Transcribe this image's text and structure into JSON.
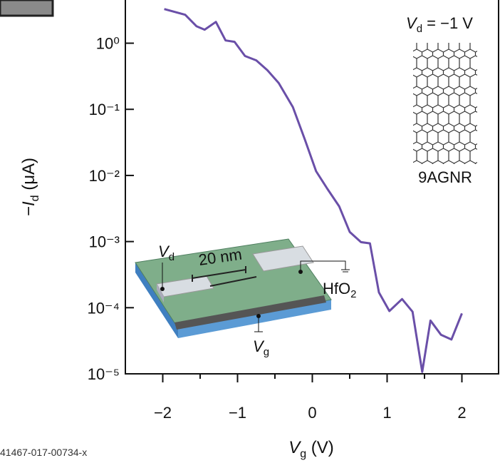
{
  "chart_data": {
    "type": "line",
    "log_scale": "y",
    "annotation": {
      "symbol": "V",
      "subscript": "d",
      "text": " = −1 V"
    },
    "molecule_label": "9AGNR",
    "inset": {
      "drain": {
        "symbol": "V",
        "subscript": "d"
      },
      "length": "20 nm",
      "dielectric": {
        "formula": "HfO",
        "subscript": "2"
      },
      "gate": {
        "symbol": "V",
        "subscript": "g"
      }
    },
    "x_label": {
      "prefix": "",
      "symbol": "V",
      "subscript": "g",
      "unit": " (V)"
    },
    "y_label": {
      "prefix": "−",
      "symbol": "I",
      "subscript": "d",
      "unit": " (μA)"
    },
    "footer": "41467-017-00734-x",
    "xlim": [
      -2.5,
      2.5
    ],
    "xticks": [
      {
        "value": -2,
        "label": "−2"
      },
      {
        "value": -1,
        "label": "−1"
      },
      0,
      1,
      2
    ],
    "xminorticks": [
      -1.5,
      -0.5,
      0.5,
      1.5
    ],
    "ylim": [
      1e-05,
      4.5
    ],
    "yticks": [
      {
        "value": 1,
        "label": "10⁰"
      },
      {
        "value": 0.1,
        "label": "10⁻¹"
      },
      {
        "value": 0.01,
        "label": "10⁻²"
      },
      {
        "value": 0.001,
        "label": "10⁻³"
      },
      {
        "value": 0.0001,
        "label": "10⁻⁴"
      },
      {
        "value": 1e-05,
        "label": "10⁻⁵"
      }
    ],
    "x": [
      -1.98,
      -1.7,
      -1.55,
      -1.44,
      -1.29,
      -1.16,
      -1.04,
      -0.9,
      -0.75,
      -0.6,
      -0.45,
      -0.26,
      -0.1,
      0.05,
      0.2,
      0.36,
      0.5,
      0.65,
      0.77,
      0.89,
      1.03,
      1.2,
      1.34,
      1.47,
      1.58,
      1.72,
      1.86,
      2.0
    ],
    "series": [
      {
        "name": null,
        "color": "#6a4fa8",
        "values": [
          3.28,
          2.69,
          1.81,
          1.6,
          2.1,
          1.1,
          1.05,
          0.64,
          0.55,
          0.39,
          0.25,
          0.108,
          0.035,
          0.0116,
          0.0063,
          0.0034,
          0.0014,
          0.00098,
          0.00094,
          0.00017,
          8.9e-05,
          0.000135,
          8.7e-05,
          1.07e-05,
          6.4e-05,
          3.9e-05,
          3.3e-05,
          8.2e-05
        ]
      }
    ]
  }
}
